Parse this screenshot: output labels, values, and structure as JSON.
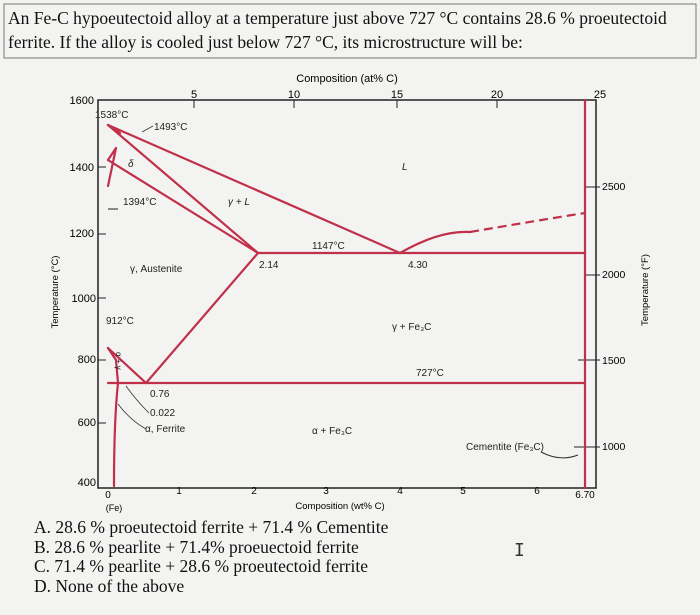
{
  "question": {
    "text": "An Fe-C hypoeutectoid alloy at a temperature just above 727 °C contains 28.6 % proeutectoid ferrite. If the alloy is cooled just below 727 °C, its microstructure will be:"
  },
  "diagram": {
    "top_axis_title": "Composition (at% C)",
    "top_ticks": [
      "5",
      "10",
      "15",
      "20",
      "25"
    ],
    "bottom_axis_title": "Composition (wt% C)",
    "bottom_ticks": [
      "0",
      "1",
      "2",
      "3",
      "4",
      "5",
      "6",
      "6.70"
    ],
    "bottom_sub": "(Fe)",
    "left_axis_title": "Temperature (°C)",
    "left_ticks": [
      "1600",
      "1400",
      "1200",
      "1000",
      "800",
      "600",
      "400"
    ],
    "right_axis_title": "Temperature (°F)",
    "right_ticks": [
      "2500",
      "2000",
      "1500",
      "1000"
    ],
    "labels": {
      "t1538": "1538°C",
      "t1493": "1493°C",
      "delta": "δ",
      "t1394": "1394°C",
      "gamma_l": "γ + L",
      "liquid": "L",
      "t1147": "1147°C",
      "c214": "2.14",
      "c430": "4.30",
      "austenite": "γ, Austenite",
      "t912": "912°C",
      "gamma_fe3c": "γ + Fe₃C",
      "t727": "727°C",
      "c076": "0.76",
      "c0022": "0.022",
      "ferrite": "α, Ferrite",
      "alpha_fe3c": "α + Fe₃C",
      "cementite": "Cementite (Fe₃C)",
      "alpha_gamma": "α + γ"
    }
  },
  "options": [
    "A. 28.6 % proeutectoid ferrite + 71.4 % Cementite",
    "B. 28.6 % pearlite + 71.4% proeuectoid ferrite",
    "C. 71.4 % pearlite + 28.6 % proeutectoid ferrite",
    "D. None of the above"
  ],
  "colors": {
    "phase_line": "#c0304a",
    "frame": "#222222"
  }
}
